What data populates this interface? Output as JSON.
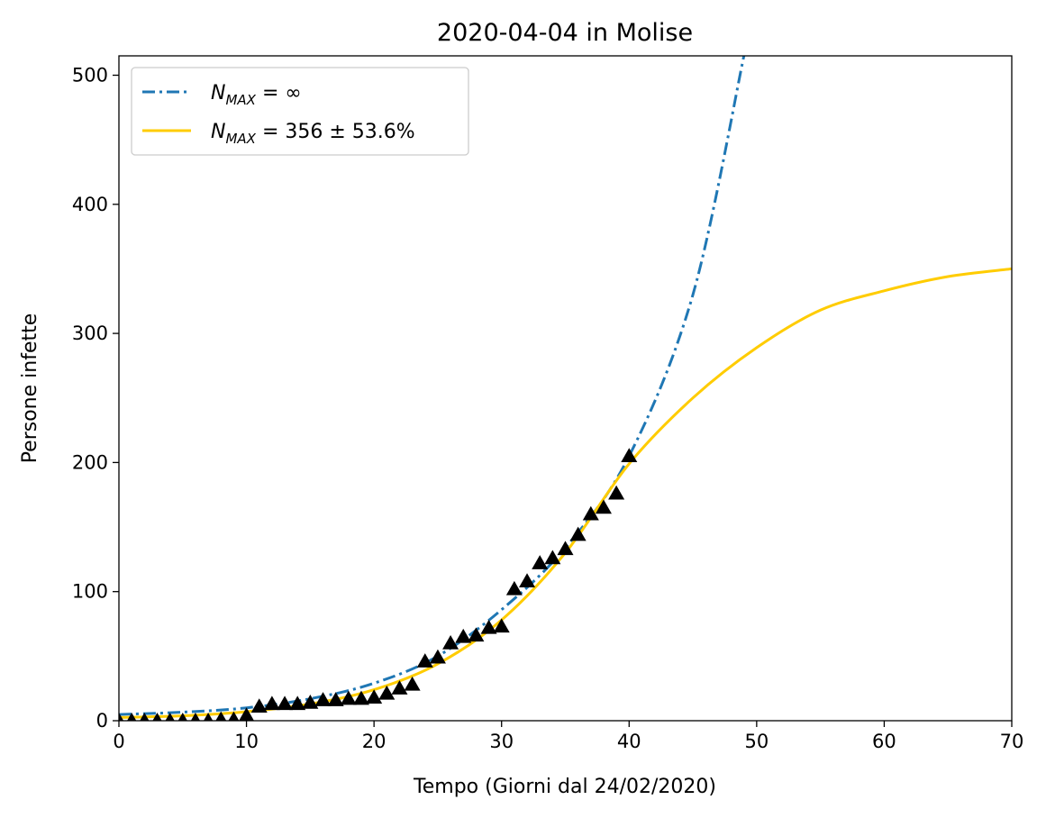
{
  "chart_data": {
    "type": "line",
    "title": "2020-04-04 in Molise",
    "xlabel": "Tempo (Giorni dal 24/02/2020)",
    "ylabel": "Persone infette",
    "xlim": [
      0,
      70
    ],
    "ylim": [
      0,
      515
    ],
    "xticks": [
      0,
      10,
      20,
      30,
      40,
      50,
      60,
      70
    ],
    "yticks": [
      0,
      100,
      200,
      300,
      400,
      500
    ],
    "grid": false,
    "legend_position": "top-left",
    "legend": [
      {
        "label_main": "N",
        "label_sub": "MAX",
        "label_rest": " = ∞",
        "color": "#1f77b4",
        "style": "dashdot"
      },
      {
        "label_main": "N",
        "label_sub": "MAX",
        "label_rest": " = 356 ± 53.6%",
        "color": "#ffcc00",
        "style": "solid"
      }
    ],
    "series": [
      {
        "name": "N_MAX = ∞",
        "kind": "exponential-fit",
        "color": "#1f77b4",
        "x": [
          0,
          5,
          10,
          15,
          20,
          25,
          30,
          35,
          40,
          45,
          49
        ],
        "y": [
          4.8,
          6.6,
          10,
          17,
          29,
          50,
          86,
          134,
          205,
          330,
          515
        ]
      },
      {
        "name": "N_MAX = 356 ± 53.6%",
        "kind": "logistic-fit",
        "color": "#ffcc00",
        "x": [
          0,
          5,
          10,
          15,
          20,
          25,
          30,
          35,
          40,
          45,
          50,
          55,
          60,
          65,
          70
        ],
        "y": [
          2.5,
          3.8,
          7,
          13,
          24,
          44,
          78,
          130,
          199,
          250,
          289,
          318,
          333,
          344,
          350
        ]
      },
      {
        "name": "",
        "kind": "observed",
        "marker": "triangle",
        "color": "#000000",
        "x": [
          0,
          1,
          2,
          3,
          4,
          5,
          6,
          7,
          8,
          9,
          10,
          11,
          12,
          13,
          14,
          15,
          16,
          17,
          18,
          19,
          20,
          21,
          22,
          23,
          24,
          25,
          26,
          27,
          28,
          29,
          30,
          31,
          32,
          33,
          34,
          35,
          36,
          37,
          38,
          39,
          40
        ],
        "y": [
          0,
          0,
          0,
          0,
          0,
          0,
          0,
          0,
          1,
          1,
          4,
          11,
          13,
          13,
          13,
          14,
          16,
          16,
          17,
          17,
          18,
          21,
          25,
          28,
          46,
          49,
          60,
          65,
          66,
          72,
          73,
          102,
          108,
          122,
          126,
          133,
          144,
          160,
          165,
          176,
          205
        ]
      }
    ]
  }
}
